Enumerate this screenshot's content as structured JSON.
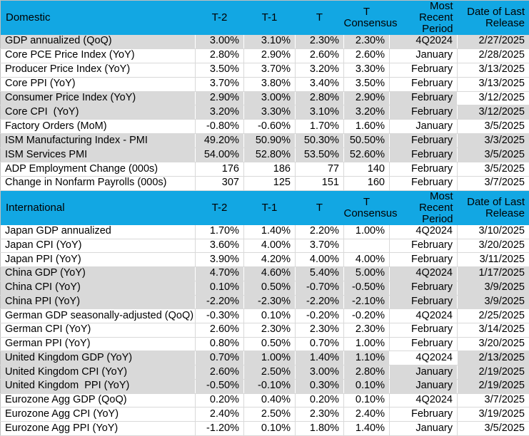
{
  "meta": {
    "header_bg": "#12a7e3",
    "row_gray": "#d9d9d9",
    "text_color": "#000000"
  },
  "columns": [
    "T-2",
    "T-1",
    "T",
    "T Consensus",
    "Most Recent Period",
    "Date of Last Release"
  ],
  "sections": [
    {
      "title": "Domestic",
      "rows": [
        {
          "shade": "gray",
          "cells": [
            "GDP annualized (QoQ)",
            "3.00%",
            "3.10%",
            "2.30%",
            "2.30%",
            "4Q2024",
            "2/27/2025"
          ]
        },
        {
          "shade": "white",
          "cells": [
            "Core PCE Price Index (YoY)",
            "2.80%",
            "2.90%",
            "2.60%",
            "2.60%",
            "January",
            "2/28/2025"
          ]
        },
        {
          "shade": "white",
          "cells": [
            "Producer Price Index (YoY)",
            "3.50%",
            "3.70%",
            "3.20%",
            "3.30%",
            "February",
            "3/13/2025"
          ]
        },
        {
          "shade": "white",
          "cells": [
            "Core PPI (YoY)",
            "3.70%",
            "3.80%",
            "3.40%",
            "3.50%",
            "February",
            "3/13/2025"
          ]
        },
        {
          "shade": "gray",
          "cells": [
            "Consumer Price Index (YoY)",
            "2.90%",
            "3.00%",
            "2.80%",
            "2.90%",
            "February",
            "3/12/2025"
          ],
          "overrides": {
            "6": "white"
          }
        },
        {
          "shade": "gray",
          "cells": [
            "Core CPI  (YoY)",
            "3.20%",
            "3.30%",
            "3.10%",
            "3.20%",
            "February",
            "3/12/2025"
          ]
        },
        {
          "shade": "white",
          "cells": [
            "Factory Orders (MoM)",
            "-0.80%",
            "-0.60%",
            "1.70%",
            "1.60%",
            "January",
            "3/5/2025"
          ]
        },
        {
          "shade": "gray",
          "cells": [
            "ISM Manufacturing Index - PMI",
            "49.20%",
            "50.90%",
            "50.30%",
            "50.50%",
            "February",
            "3/3/2025"
          ]
        },
        {
          "shade": "gray",
          "cells": [
            "ISM Services PMI",
            "54.00%",
            "52.80%",
            "53.50%",
            "52.60%",
            "February",
            "3/5/2025"
          ]
        },
        {
          "shade": "white",
          "cells": [
            "ADP Employment Change (000s)",
            "176",
            "186",
            "77",
            "140",
            "February",
            "3/5/2025"
          ]
        },
        {
          "shade": "white",
          "cells": [
            "Change in Nonfarm Payrolls (000s)",
            "307",
            "125",
            "151",
            "160",
            "February",
            "3/7/2025"
          ]
        }
      ]
    },
    {
      "title": "International",
      "rows": [
        {
          "shade": "white",
          "cells": [
            "Japan GDP annualized",
            "1.70%",
            "1.40%",
            "2.20%",
            "1.00%",
            "4Q2024",
            "3/10/2025"
          ]
        },
        {
          "shade": "white",
          "cells": [
            "Japan CPI (YoY)",
            "3.60%",
            "4.00%",
            "3.70%",
            "",
            "February",
            "3/20/2025"
          ]
        },
        {
          "shade": "white",
          "cells": [
            "Japan PPI (YoY)",
            "3.90%",
            "4.20%",
            "4.00%",
            "4.00%",
            "February",
            "3/11/2025"
          ]
        },
        {
          "shade": "gray",
          "cells": [
            "China GDP (YoY)",
            "4.70%",
            "4.60%",
            "5.40%",
            "5.00%",
            "4Q2024",
            "1/17/2025"
          ]
        },
        {
          "shade": "gray",
          "cells": [
            "China CPI (YoY)",
            "0.10%",
            "0.50%",
            "-0.70%",
            "-0.50%",
            "February",
            "3/9/2025"
          ]
        },
        {
          "shade": "gray",
          "cells": [
            "China PPI (YoY)",
            "-2.20%",
            "-2.30%",
            "-2.20%",
            "-2.10%",
            "February",
            "3/9/2025"
          ]
        },
        {
          "shade": "white",
          "cells": [
            "German GDP seasonally-adjusted (QoQ)",
            "-0.30%",
            "0.10%",
            "-0.20%",
            "-0.20%",
            "4Q2024",
            "2/25/2025"
          ]
        },
        {
          "shade": "white",
          "cells": [
            "German CPI (YoY)",
            "2.60%",
            "2.30%",
            "2.30%",
            "2.30%",
            "February",
            "3/14/2025"
          ]
        },
        {
          "shade": "white",
          "cells": [
            "German PPI (YoY)",
            "0.80%",
            "0.50%",
            "0.70%",
            "1.00%",
            "February",
            "3/20/2025"
          ]
        },
        {
          "shade": "gray",
          "cells": [
            "United Kingdom GDP (YoY)",
            "0.70%",
            "1.00%",
            "1.40%",
            "1.10%",
            "4Q2024",
            "2/13/2025"
          ],
          "overrides": {
            "5": "white"
          }
        },
        {
          "shade": "gray",
          "cells": [
            "United Kingdom CPI (YoY)",
            "2.60%",
            "2.50%",
            "3.00%",
            "2.80%",
            "January",
            "2/19/2025"
          ]
        },
        {
          "shade": "gray",
          "cells": [
            "United Kingdom  PPI (YoY)",
            "-0.50%",
            "-0.10%",
            "0.30%",
            "0.10%",
            "January",
            "2/19/2025"
          ]
        },
        {
          "shade": "white",
          "cells": [
            "Eurozone Agg GDP (QoQ)",
            "0.20%",
            "0.40%",
            "0.20%",
            "0.10%",
            "4Q2024",
            "3/7/2025"
          ]
        },
        {
          "shade": "white",
          "cells": [
            "Eurozone Agg CPI (YoY)",
            "2.40%",
            "2.50%",
            "2.30%",
            "2.40%",
            "February",
            "3/19/2025"
          ]
        },
        {
          "shade": "white",
          "cells": [
            "Eurozone Agg PPI (YoY)",
            "-1.20%",
            "0.10%",
            "1.80%",
            "1.40%",
            "January",
            "3/5/2025"
          ]
        }
      ]
    }
  ]
}
